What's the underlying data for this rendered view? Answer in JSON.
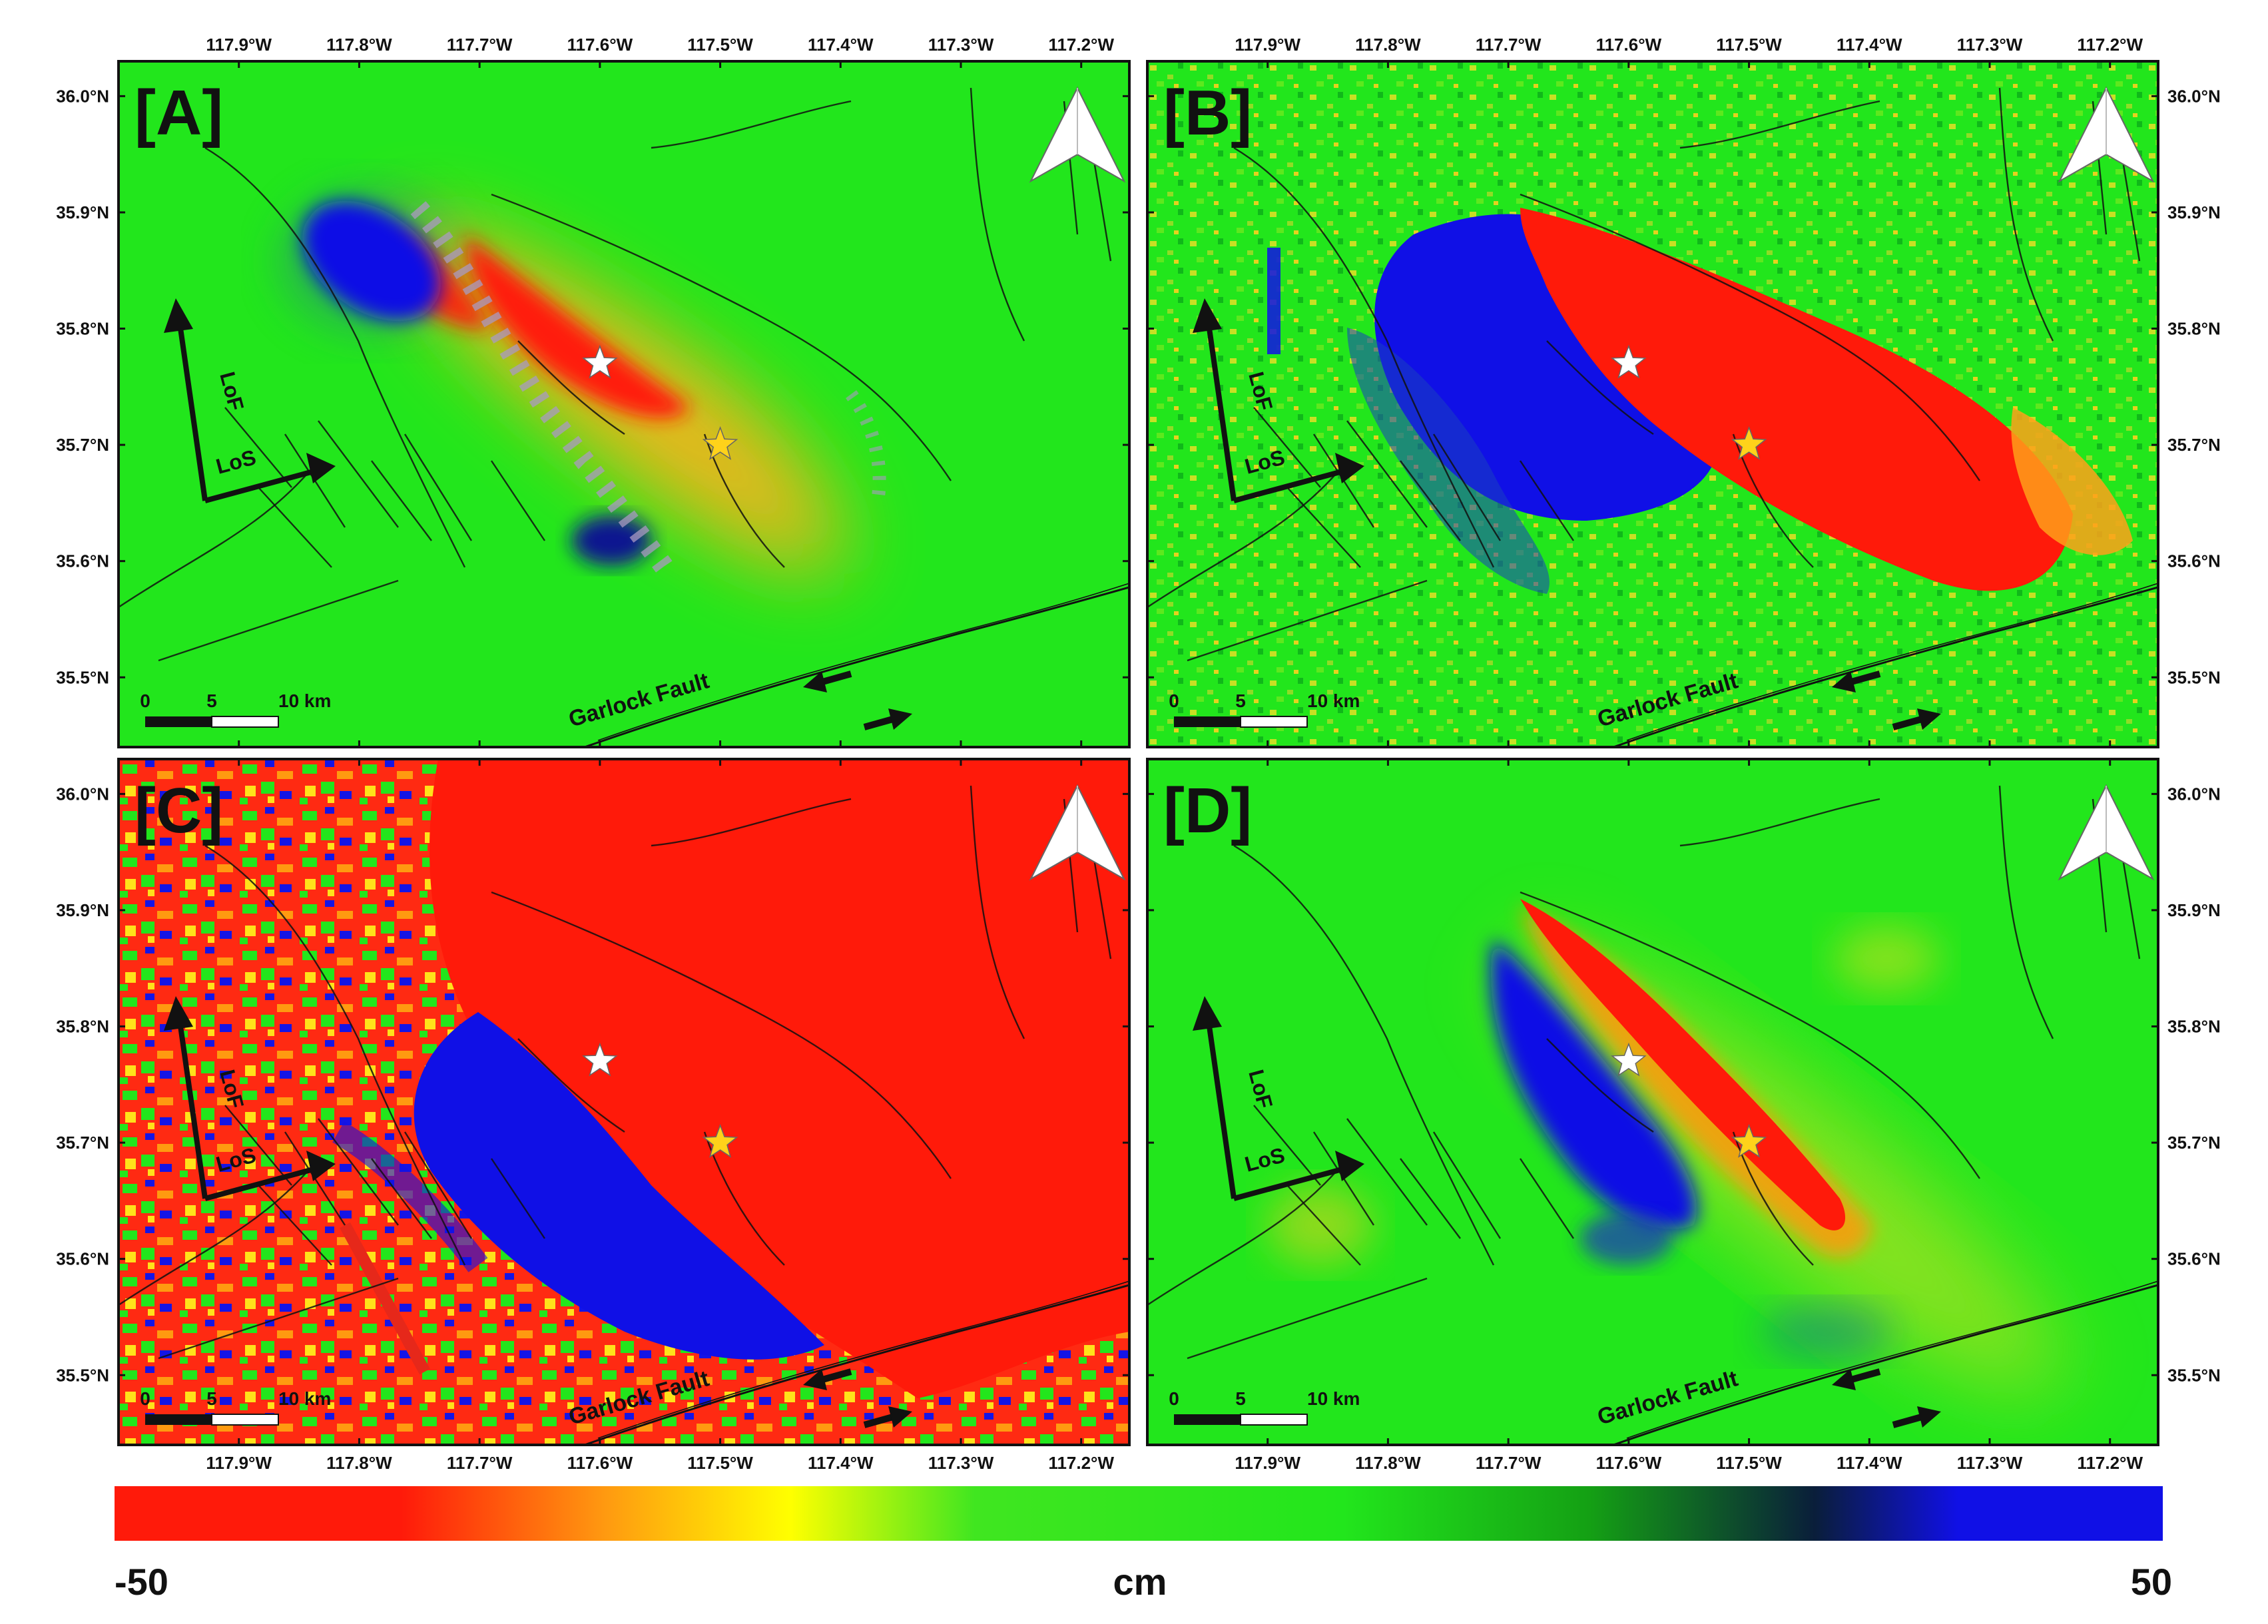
{
  "figure": {
    "lon_ticks": [
      "117.9°W",
      "117.8°W",
      "117.7°W",
      "117.6°W",
      "117.5°W",
      "117.4°W",
      "117.3°W",
      "117.2°W"
    ],
    "lat_ticks": [
      "36.0°N",
      "35.9°N",
      "35.8°N",
      "35.7°N",
      "35.6°N",
      "35.5°N"
    ],
    "scale_bar": {
      "labels": [
        "0",
        "5",
        "10 km"
      ]
    },
    "fault_name": "Garlock Fault",
    "arrow_labels": {
      "look": "LoS",
      "flight": "LoF"
    },
    "colors": {
      "background_green": "#22e61c",
      "negative_red": "#ff1a0a",
      "positive_blue": "#1010e6",
      "star_white": "#ffffff",
      "star_yellow": "#ffd21a"
    },
    "markers": [
      {
        "name": "epicenter-white-star",
        "lon": -117.6,
        "lat": 35.77,
        "color": "#ffffff"
      },
      {
        "name": "epicenter-yellow-star",
        "lon": -117.5,
        "lat": 35.7,
        "color": "#ffd21a"
      }
    ],
    "panels": [
      {
        "id": "A",
        "label": "[A]",
        "pattern": "smooth"
      },
      {
        "id": "B",
        "label": "[B]",
        "pattern": "speckle"
      },
      {
        "id": "C",
        "label": "[C]",
        "pattern": "noisy"
      },
      {
        "id": "D",
        "label": "[D]",
        "pattern": "narrow"
      }
    ],
    "colorbar": {
      "min_label": "-50",
      "max_label": "50",
      "unit": "cm",
      "min": -50,
      "max": 50
    }
  }
}
